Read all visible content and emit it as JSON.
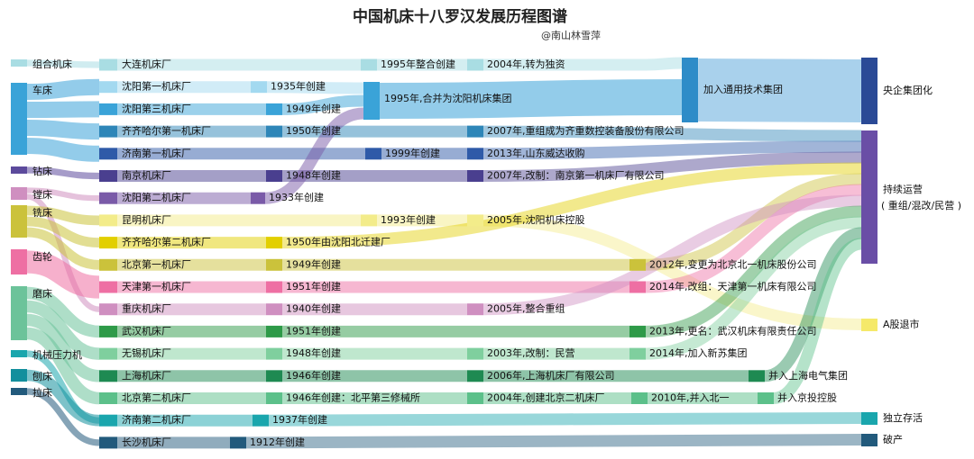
{
  "title": "中国机床十八罗汉发展历程图谱",
  "subtitle": "@南山林雪萍",
  "categories": [
    {
      "label": "组合机床",
      "color": "#a9dde3"
    },
    {
      "label": "车床",
      "color": "#3aa3d8"
    },
    {
      "label": "钻床",
      "color": "#5c4a9c"
    },
    {
      "label": "镗床",
      "color": "#cf8fc0"
    },
    {
      "label": "铣床",
      "color": "#cbc23b"
    },
    {
      "label": "齿轮",
      "color": "#ee6fa3"
    },
    {
      "label": "磨床",
      "color": "#6cc39a"
    },
    {
      "label": "机械压力机",
      "color": "#1aa6ad"
    },
    {
      "label": "刨床",
      "color": "#138f9d"
    },
    {
      "label": "拉床",
      "color": "#225a7c"
    }
  ],
  "factories": [
    {
      "name": "大连机床厂",
      "color": "#a9dde3",
      "events": [
        "1995年整合创建",
        "2004年,转为独资"
      ]
    },
    {
      "name": "沈阳第一机床厂",
      "color": "#a3d9f0",
      "events": [
        "1935年创建"
      ]
    },
    {
      "name": "沈阳第三机床厂",
      "color": "#3aa3d8",
      "events": [
        "1949年创建"
      ]
    },
    {
      "name": "齐齐哈尔第一机床厂",
      "color": "#2e86b8",
      "events": [
        "1950年创建",
        "2007年,重组成为齐重数控装备股份有限公司"
      ]
    },
    {
      "name": "济南第一机床厂",
      "color": "#2f5aa8",
      "events": [
        "1999年创建",
        "2013年,山东威达收购"
      ]
    },
    {
      "name": "南京机床厂",
      "color": "#4a3f8f",
      "events": [
        "1948年创建",
        "2007年,改制：南京第一机床厂有限公司"
      ]
    },
    {
      "name": "沈阳第二机床厂",
      "color": "#7a5aa8",
      "events": [
        "1933年创建"
      ]
    },
    {
      "name": "昆明机床厂",
      "color": "#f3ec8a",
      "events": [
        "1993年创建",
        "2005年,沈阳机床控股"
      ]
    },
    {
      "name": "齐齐哈尔第二机床厂",
      "color": "#e2cf00",
      "events": [
        "1950年由沈阳北迁建厂"
      ]
    },
    {
      "name": "北京第一机床厂",
      "color": "#cbc23b",
      "events": [
        "1949年创建",
        "2012年,变更为北京北一机床股份公司"
      ]
    },
    {
      "name": "天津第一机床厂",
      "color": "#ee6fa3",
      "events": [
        "1951年创建",
        "2014年,改组：天津第一机床有限公司"
      ]
    },
    {
      "name": "重庆机床厂",
      "color": "#cf8fc0",
      "events": [
        "1940年创建",
        "2005年,整合重组"
      ]
    },
    {
      "name": "武汉机床厂",
      "color": "#2e9a48",
      "events": [
        "1951年创建",
        "2013年,更名：武汉机床有限责任公司"
      ]
    },
    {
      "name": "无锡机床厂",
      "color": "#7fcf9e",
      "events": [
        "1948年创建",
        "2003年,改制：民营",
        "2014年,加入新苏集团"
      ]
    },
    {
      "name": "上海机床厂",
      "color": "#1e8a52",
      "events": [
        "1946年创建",
        "2006年,上海机床厂有限公司",
        "并入上海电气集团"
      ]
    },
    {
      "name": "北京第二机床厂",
      "color": "#5cc08a",
      "events": [
        "1946年创建：北平第三修械所",
        "2004年,创建北京二机床厂",
        "2010年,并入北一",
        "并入京投控股"
      ]
    },
    {
      "name": "济南第二机床厂",
      "color": "#1aa6ad",
      "events": [
        "1937年创建"
      ]
    },
    {
      "name": "长沙机床厂",
      "color": "#225a7c",
      "events": [
        "1912年创建"
      ]
    }
  ],
  "merge_events": {
    "shenyang_group": "1995年,合并为沈阳机床集团",
    "general_tech": "加入通用技术集团"
  },
  "outcomes": [
    {
      "label": "央企集团化",
      "color": "#2a4a96"
    },
    {
      "label": "持续运营",
      "sublabel": "( 重组/混改/民营 )",
      "color": "#6a4ea6"
    },
    {
      "label": "A股退市",
      "color": "#f5e96a"
    },
    {
      "label": "独立存活",
      "color": "#1aa6ad"
    },
    {
      "label": "破产",
      "color": "#225a7c"
    }
  ]
}
